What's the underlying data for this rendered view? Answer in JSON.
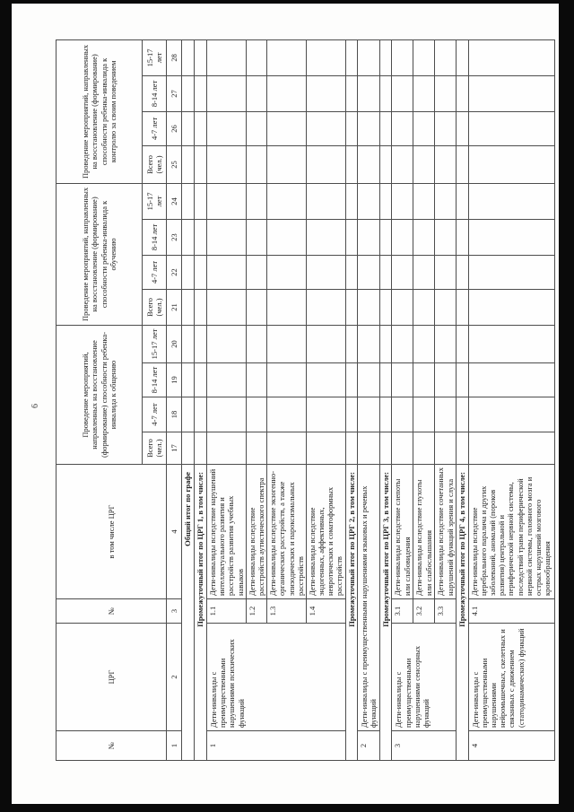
{
  "page": {
    "number": "6"
  },
  "table": {
    "header": {
      "col_no": "№",
      "col_crg": "ЦРГ",
      "col_no2": "№",
      "col_incl": "в том числе ЦРГ",
      "col_nums": [
        "1",
        "2",
        "3",
        "4"
      ],
      "groups": [
        {
          "title": "Проведение мероприятий, направленных на восстановление (формирование) способности ребенка-инвалида к общению",
          "subcols": [
            "Всего (чел.)",
            "4-7 лет",
            "8-14 лет",
            "15-17 лет"
          ],
          "nums": [
            "17",
            "18",
            "19",
            "20"
          ]
        },
        {
          "title": "Проведение мероприятий, направленных на восстановление (формирование) способности ребенка-инвалида к обучению",
          "subcols": [
            "Всего (чел.)",
            "4-7 лет",
            "8-14 лет",
            "15-17 лет"
          ],
          "nums": [
            "21",
            "22",
            "23",
            "24"
          ]
        },
        {
          "title": "Проведение мероприятий, направленных на восстановление (формирование) способности ребенка-инвалида к контролю за своим поведением",
          "subcols": [
            "Всего (чел.)",
            "4-7 лет",
            "8-14 лет",
            "15-17 лет"
          ],
          "nums": [
            "25",
            "26",
            "27",
            "28"
          ]
        }
      ]
    },
    "rows": {
      "total_label": "Общий итог по графе",
      "crg1": {
        "subtotal": "Промежуточный итог по ЦРГ 1, в том числе:",
        "no": "1",
        "name": "Дети-инвалиды с преимущественными нарушениями психических функций",
        "items": [
          {
            "no": "1.1",
            "text": "Дети-инвалиды вследствие нарушений интеллектуального развития и расстройств развития учебных навыков"
          },
          {
            "no": "1.2",
            "text": "Дети-инвалиды вследствие расстройств аутистического спектра"
          },
          {
            "no": "1.3",
            "text": "Дети-инвалиды вследствие экзогенно-органических расстройств, а также эпизодических и пароксизмальных расстройств"
          },
          {
            "no": "1.4",
            "text": "Дети-инвалиды вследствие эндогенных, аффективных, невротических и соматоформных расстройств"
          }
        ]
      },
      "crg2": {
        "subtotal": "Промежуточный итог по ЦРГ 2, в том числе:",
        "no": "2",
        "name": "Дети-инвалиды с преимущественными нарушениями языковых и речевых функций"
      },
      "crg3": {
        "subtotal": "Промежуточный итог по ЦРГ 3, в том числе:",
        "no": "3",
        "name": "Дети-инвалиды с преимущественными нарушениями сенсорных функций",
        "items": [
          {
            "no": "3.1",
            "text": "Дети-инвалиды вследствие слепоты или слабовидения"
          },
          {
            "no": "3.2",
            "text": "Дети-инвалиды вследствие глухоты или слабослышания"
          },
          {
            "no": "3.3",
            "text": "Дети-инвалиды вследствие сочетанных нарушений функций зрения и слуха"
          }
        ]
      },
      "crg4": {
        "subtotal": "Промежуточный итог по ЦРГ 4, в том числе:",
        "no": "4",
        "name": "Дети-инвалиды с преимущественными нарушениями нейромышечных, скелетных и связанных с движением (статодинамических) функций",
        "items": [
          {
            "no": "4.1",
            "text": "Дети-инвалиды вследствие церебрального паралича и других заболеваний, аномалий (пороков развития) центральной и периферической нервной системы, последствий травм периферической нервной системы, головного мозга и острых нарушений мозгового кровообращения"
          }
        ]
      }
    }
  }
}
